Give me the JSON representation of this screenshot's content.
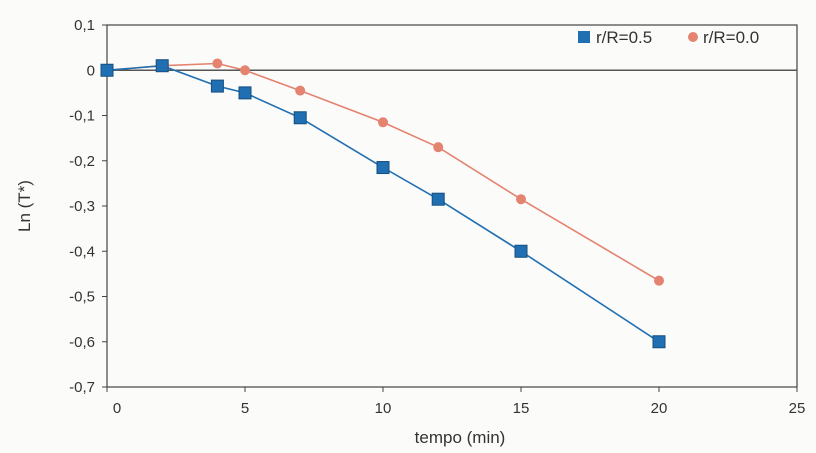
{
  "chart_data": {
    "type": "line",
    "title": "",
    "xlabel": "tempo (min)",
    "ylabel": "Ln (T*)",
    "xlim": [
      0,
      25
    ],
    "ylim": [
      -0.7,
      0.1
    ],
    "x_ticks": [
      0,
      5,
      10,
      15,
      20,
      25
    ],
    "x_tick_labels": [
      "0",
      "5",
      "10",
      "15",
      "20",
      "25"
    ],
    "y_ticks": [
      0.1,
      0,
      -0.1,
      -0.2,
      -0.3,
      -0.4,
      -0.5,
      -0.6,
      -0.7
    ],
    "y_tick_labels": [
      "0,1",
      "0",
      "-0,1",
      "-0,2",
      "-0,3",
      "-0,4",
      "-0,5",
      "-0,6",
      "-0,7"
    ],
    "grid": false,
    "zero_line": true,
    "legend_position": "top-right",
    "series": [
      {
        "name": "r/R=0.5",
        "color": "#1f6fb2",
        "marker": "square",
        "x": [
          0,
          2,
          4,
          5,
          7,
          10,
          12,
          15,
          20
        ],
        "y": [
          0,
          0.01,
          -0.035,
          -0.05,
          -0.105,
          -0.215,
          -0.285,
          -0.4,
          -0.6
        ]
      },
      {
        "name": "r/R=0.0",
        "color": "#e4836f",
        "marker": "circle",
        "x": [
          0,
          2,
          4,
          5,
          7,
          10,
          12,
          15,
          20
        ],
        "y": [
          0,
          0.01,
          0.015,
          0,
          -0.045,
          -0.115,
          -0.17,
          -0.285,
          -0.465
        ]
      }
    ]
  }
}
